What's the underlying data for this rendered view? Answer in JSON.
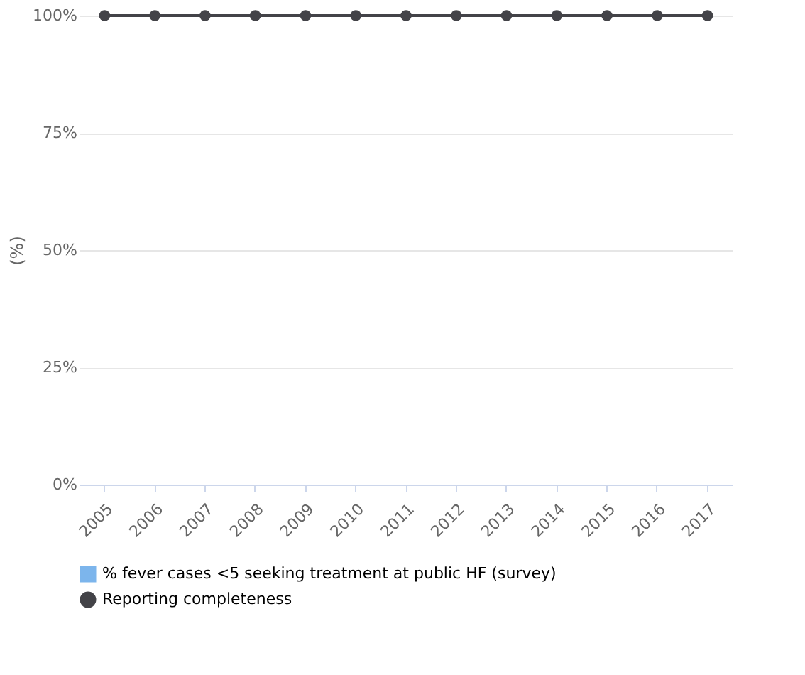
{
  "chart_data": {
    "type": "line",
    "ylabel": "(%)",
    "categories": [
      "2005",
      "2006",
      "2007",
      "2008",
      "2009",
      "2010",
      "2011",
      "2012",
      "2013",
      "2014",
      "2015",
      "2016",
      "2017"
    ],
    "series": [
      {
        "name": "% fever cases <5 seeking treatment at public HF (survey)",
        "type": "bar",
        "color": "#7cb5ec",
        "values": [
          null,
          null,
          null,
          null,
          null,
          null,
          null,
          null,
          null,
          null,
          null,
          null,
          null
        ]
      },
      {
        "name": "Reporting completeness",
        "color": "#434348",
        "values": [
          100,
          100,
          100,
          100,
          100,
          100,
          100,
          100,
          100,
          100,
          100,
          100,
          100
        ]
      }
    ],
    "ylim": [
      0,
      100
    ],
    "yticks": [
      {
        "value": 0,
        "label": "0%"
      },
      {
        "value": 25,
        "label": "25%"
      },
      {
        "value": 50,
        "label": "50%"
      },
      {
        "value": 75,
        "label": "75%"
      },
      {
        "value": 100,
        "label": "100%"
      }
    ],
    "grid": "y",
    "legend": "bottom",
    "marker": "circle",
    "line_style": "solid"
  }
}
